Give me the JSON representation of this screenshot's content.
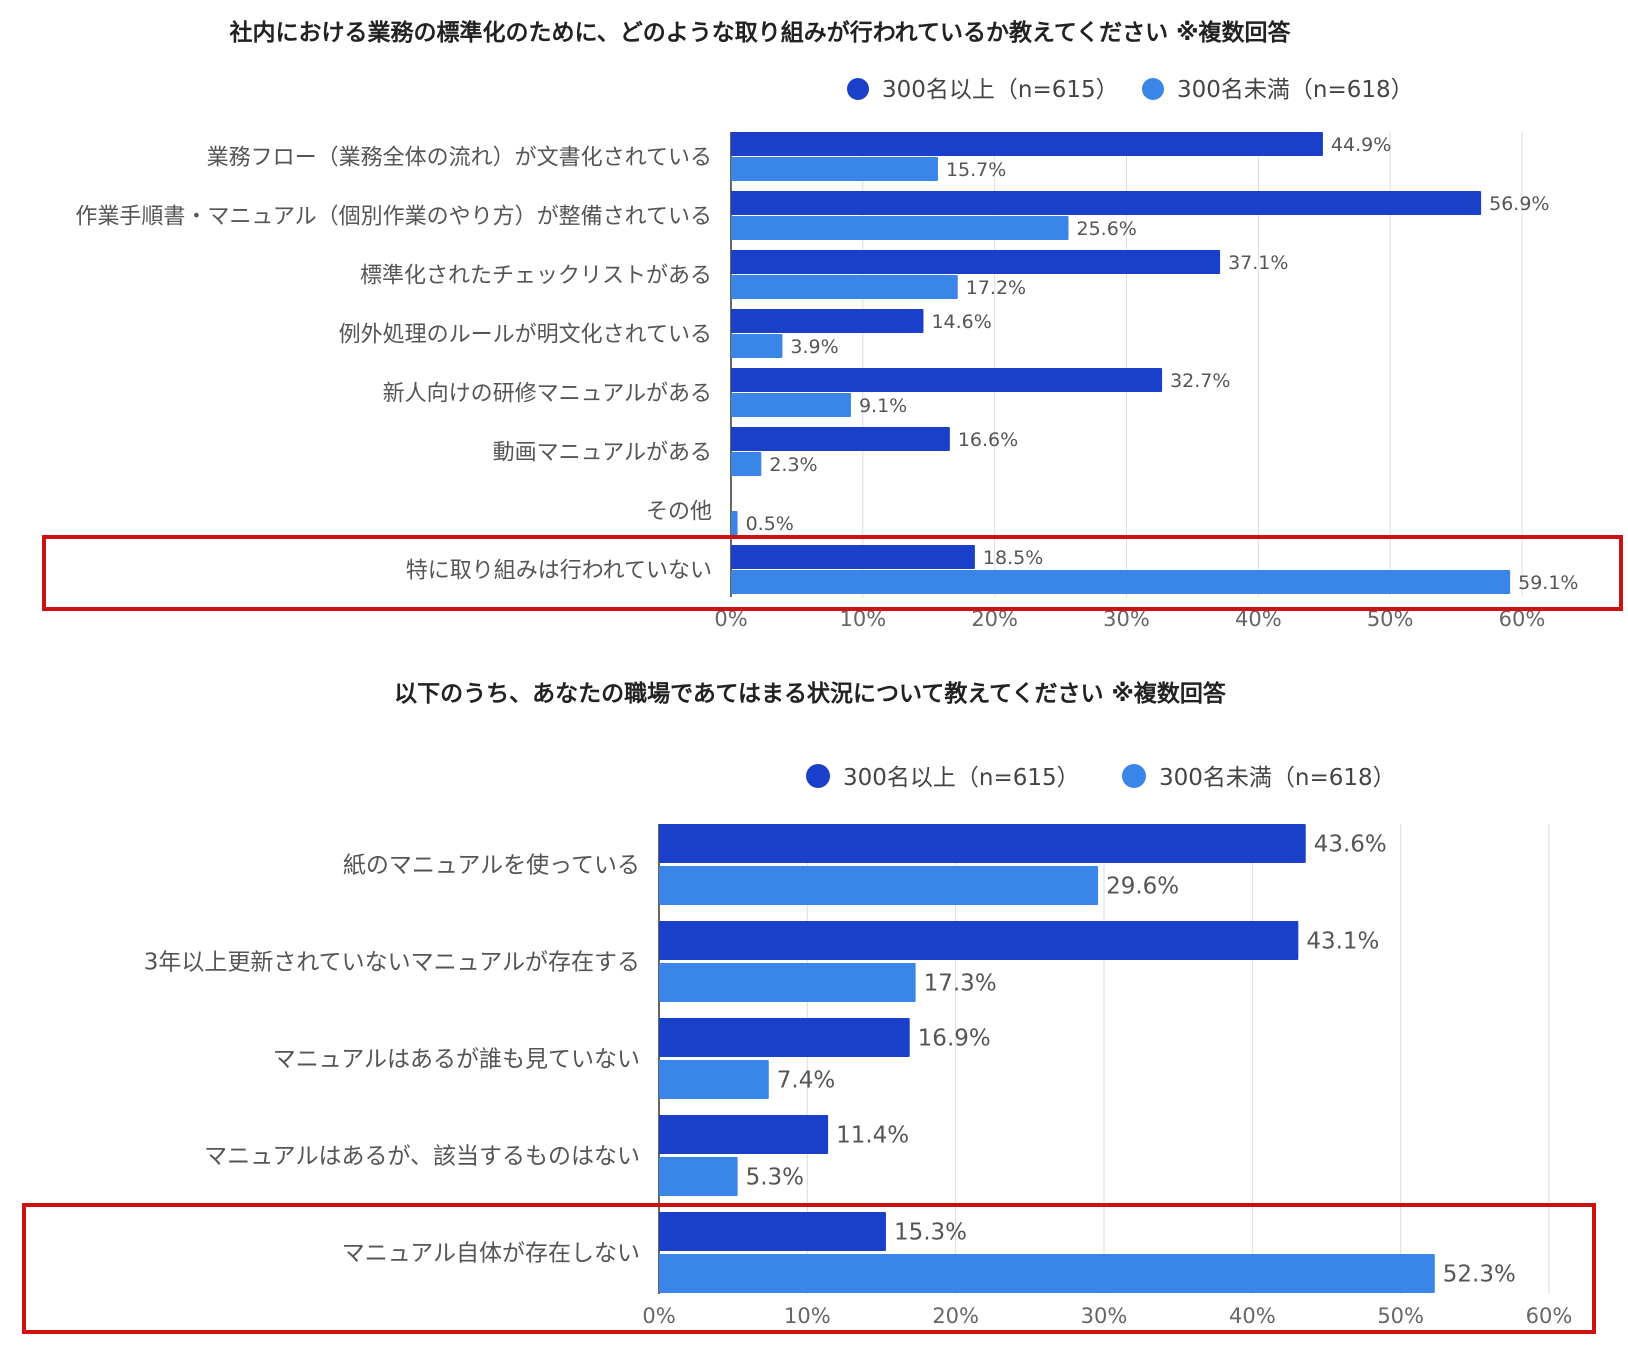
{
  "colors": {
    "large": "#1a3fc8",
    "small": "#3a86e8",
    "highlight": "#cc1111"
  },
  "chart_data": [
    {
      "type": "bar",
      "orientation": "horizontal",
      "title": "社内における業務の標準化のために、どのような取り組みが行われているか教えてください ※複数回答",
      "legend_position": "top-right",
      "categories": [
        "業務フロー（業務全体の流れ）が文書化されている",
        "作業手順書・マニュアル（個別作業のやり方）が整備されている",
        "標準化されたチェックリストがある",
        "例外処理のルールが明文化されている",
        "新人向けの研修マニュアルがある",
        "動画マニュアルがある",
        "その他",
        "特に取り組みは行われていない"
      ],
      "series": [
        {
          "name": "300名以上（n=615）",
          "values": [
            44.9,
            56.9,
            37.1,
            14.6,
            32.7,
            16.6,
            null,
            18.5
          ],
          "labels": [
            "44.9%",
            "56.9%",
            "37.1%",
            "14.6%",
            "32.7%",
            "16.6%",
            "",
            "18.5%"
          ]
        },
        {
          "name": "300名未満（n=618）",
          "values": [
            15.7,
            25.6,
            17.2,
            3.9,
            9.1,
            2.3,
            0.5,
            59.1
          ],
          "labels": [
            "15.7%",
            "25.6%",
            "17.2%",
            "3.9%",
            "9.1%",
            "2.3%",
            "0.5%",
            "59.1%"
          ]
        }
      ],
      "xlim": [
        0,
        60
      ],
      "ticks": [
        "0%",
        "10%",
        "20%",
        "30%",
        "40%",
        "50%",
        "60%"
      ],
      "grid": true,
      "highlighted_category": "特に取り組みは行われていない"
    },
    {
      "type": "bar",
      "orientation": "horizontal",
      "title": "以下のうち、あなたの職場であてはまる状況について教えてください ※複数回答",
      "legend_position": "top-right",
      "categories": [
        "紙のマニュアルを使っている",
        "3年以上更新されていないマニュアルが存在する",
        "マニュアルはあるが誰も見ていない",
        "マニュアルはあるが、該当するものはない",
        "マニュアル自体が存在しない"
      ],
      "series": [
        {
          "name": "300名以上（n=615）",
          "values": [
            43.6,
            43.1,
            16.9,
            11.4,
            15.3
          ],
          "labels": [
            "43.6%",
            "43.1%",
            "16.9%",
            "11.4%",
            "15.3%"
          ]
        },
        {
          "name": "300名未満（n=618）",
          "values": [
            29.6,
            17.3,
            7.4,
            5.3,
            52.3
          ],
          "labels": [
            "29.6%",
            "17.3%",
            "7.4%",
            "5.3%",
            "52.3%"
          ]
        }
      ],
      "xlim": [
        0,
        60
      ],
      "ticks": [
        "0%",
        "10%",
        "20%",
        "30%",
        "40%",
        "50%",
        "60%"
      ],
      "grid": true,
      "highlighted_category": "マニュアル自体が存在しない"
    }
  ]
}
